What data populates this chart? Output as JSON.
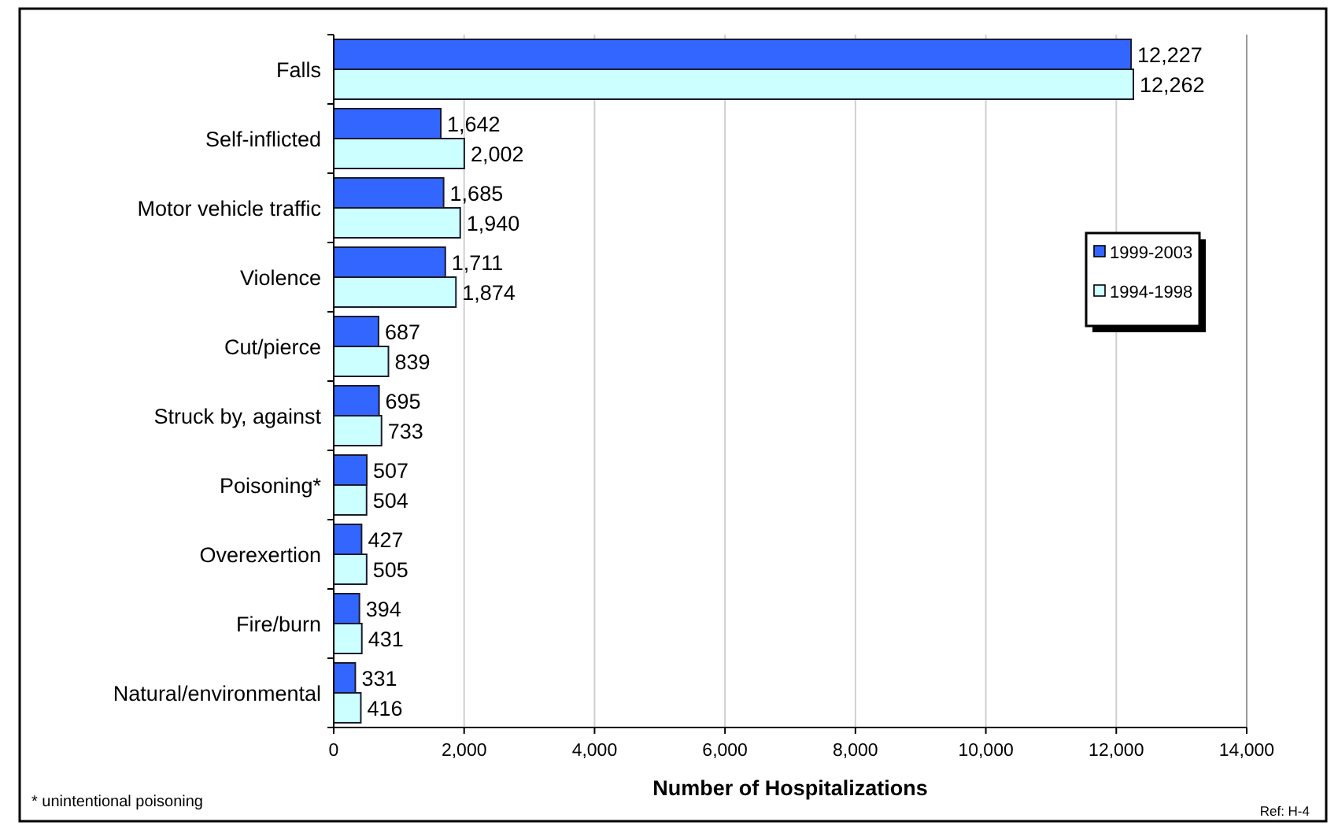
{
  "chart_data": {
    "type": "bar",
    "orientation": "horizontal",
    "xlabel": "Number of Hospitalizations",
    "categories": [
      "Falls",
      "Self-inflicted",
      "Motor vehicle traffic",
      "Violence",
      "Cut/pierce",
      "Struck by, against",
      "Poisoning*",
      "Overexertion",
      "Fire/burn",
      "Natural/environmental"
    ],
    "series": [
      {
        "name": "1999-2003",
        "color": "#3366ff",
        "values": [
          12227,
          1642,
          1685,
          1711,
          687,
          695,
          507,
          427,
          394,
          331
        ],
        "value_labels": [
          "12,227",
          "1,642",
          "1,685",
          "1,711",
          "687",
          "695",
          "507",
          "427",
          "394",
          "331"
        ]
      },
      {
        "name": "1994-1998",
        "color": "#ccffff",
        "values": [
          12262,
          2002,
          1940,
          1874,
          839,
          733,
          504,
          505,
          431,
          416
        ],
        "value_labels": [
          "12,262",
          "2,002",
          "1,940",
          "1,874",
          "839",
          "733",
          "504",
          "505",
          "431",
          "416"
        ]
      }
    ],
    "xlim": [
      0,
      14000
    ],
    "xticks": [
      0,
      {
        "value": 2000,
        "label": "2,000"
      },
      {
        "value": 4000,
        "label": "4,000"
      },
      {
        "value": 6000,
        "label": "6,000"
      },
      {
        "value": 8000,
        "label": "8,000"
      },
      {
        "value": 10000,
        "label": "10,000"
      },
      {
        "value": 12000,
        "label": "12,000"
      },
      {
        "value": 14000,
        "label": "14,000"
      }
    ],
    "grid": "x",
    "legend": "top right",
    "annotations": [
      "* unintentional poisoning",
      "Ref: H-4"
    ]
  }
}
